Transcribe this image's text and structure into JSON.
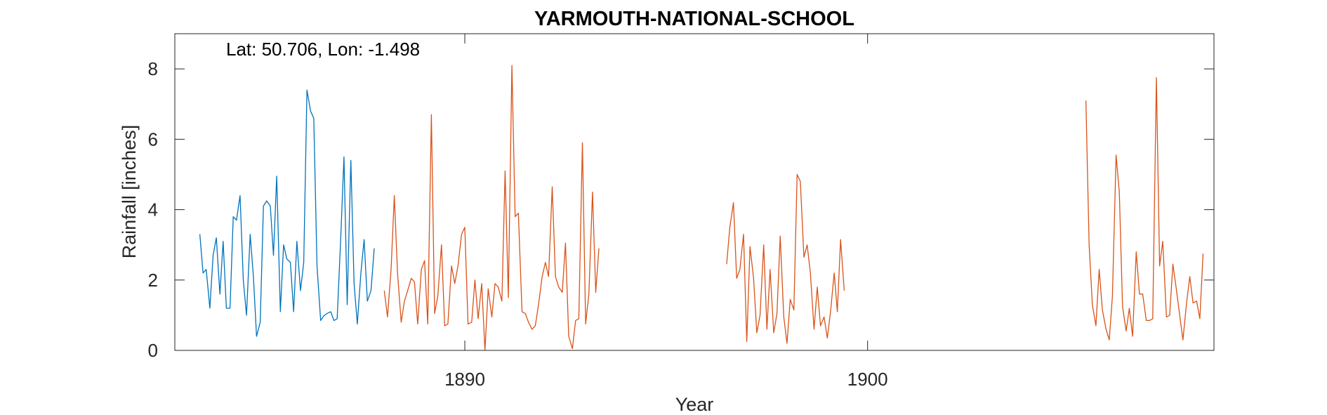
{
  "chart_data": {
    "type": "line",
    "title": "YARMOUTH-NATIONAL-SCHOOL",
    "annotation": "Lat: 50.706, Lon: -1.498",
    "xlabel": "Year",
    "ylabel": "Rainfall [inches]",
    "xlim": [
      1882.8,
      1908.6
    ],
    "ylim": [
      0,
      9
    ],
    "xticks": [
      1890,
      1900
    ],
    "yticks": [
      0,
      2,
      4,
      6,
      8
    ],
    "grid": false,
    "colors": {
      "series_1": "#0072BD",
      "series_2": "#D95319",
      "axis": "#262626"
    },
    "series": [
      {
        "x": [
          1883.42,
          1883.5,
          1883.58,
          1883.67,
          1883.75,
          1883.83,
          1883.92,
          1884.0,
          1884.08,
          1884.17,
          1884.25,
          1884.33,
          1884.42,
          1884.5,
          1884.58,
          1884.67,
          1884.75,
          1884.83,
          1884.92,
          1885.0,
          1885.08,
          1885.17,
          1885.25,
          1885.33,
          1885.42,
          1885.5,
          1885.58,
          1885.67,
          1885.75,
          1885.83,
          1885.92,
          1886.0,
          1886.08,
          1886.17,
          1886.25,
          1886.33,
          1886.42,
          1886.5,
          1886.58,
          1886.67,
          1886.75,
          1886.83,
          1886.92,
          1887.0,
          1887.08,
          1887.17,
          1887.25,
          1887.33,
          1887.42,
          1887.5,
          1887.58,
          1887.67,
          1887.75,
          1887.83,
          1887.92
        ],
        "values": [
          3.3,
          2.2,
          2.3,
          1.2,
          2.7,
          3.2,
          1.6,
          3.1,
          1.2,
          1.2,
          3.8,
          3.7,
          4.4,
          2.0,
          1.0,
          3.3,
          2.1,
          0.4,
          0.8,
          4.1,
          4.25,
          4.1,
          2.7,
          4.95,
          1.1,
          3.0,
          2.6,
          2.5,
          1.1,
          3.1,
          1.7,
          2.5,
          7.4,
          6.8,
          6.6,
          2.4,
          0.85,
          0.98,
          1.05,
          1.1,
          0.85,
          0.9,
          3.2,
          5.5,
          1.3,
          5.4,
          1.9,
          0.75,
          2.2,
          3.15,
          1.4,
          1.7,
          2.9,
          null,
          null
        ]
      },
      {
        "x": [
          1888.0,
          1888.08,
          1888.17,
          1888.25,
          1888.33,
          1888.42,
          1888.5,
          1888.58,
          1888.67,
          1888.75,
          1888.83,
          1888.92,
          1889.0,
          1889.08,
          1889.17,
          1889.25,
          1889.33,
          1889.42,
          1889.5,
          1889.58,
          1889.67,
          1889.75,
          1889.83,
          1889.92,
          1890.0,
          1890.08,
          1890.17,
          1890.25,
          1890.33,
          1890.42,
          1890.5,
          1890.58,
          1890.67,
          1890.75,
          1890.83,
          1890.92,
          1891.0,
          1891.08,
          1891.17,
          1891.25,
          1891.33,
          1891.42,
          1891.5,
          1891.58,
          1891.67,
          1891.75,
          1891.83,
          1891.92,
          1892.0,
          1892.08,
          1892.17,
          1892.25,
          1892.33,
          1892.42,
          1892.5,
          1892.58,
          1892.67,
          1892.75,
          1892.83,
          1892.92,
          1893.0,
          1893.08,
          1893.17,
          1893.25,
          1893.33,
          1893.42,
          null,
          1896.5,
          1896.58,
          1896.67,
          1896.75,
          1896.83,
          1896.92,
          1897.0,
          1897.08,
          1897.17,
          1897.25,
          1897.33,
          1897.42,
          1897.5,
          1897.58,
          1897.67,
          1897.75,
          1897.83,
          1897.92,
          1898.0,
          1898.08,
          1898.17,
          1898.25,
          1898.33,
          1898.42,
          1898.5,
          1898.58,
          1898.67,
          1898.75,
          1898.83,
          1898.92,
          1899.0,
          1899.08,
          1899.17,
          1899.25,
          1899.33,
          1899.42,
          null,
          1905.42,
          1905.5,
          1905.58,
          1905.67,
          1905.75,
          1905.83,
          1905.92,
          1906.0,
          1906.08,
          1906.17,
          1906.25,
          1906.33,
          1906.42,
          1906.5,
          1906.58,
          1906.67,
          1906.75,
          1906.83,
          1906.92,
          1907.0,
          1907.08,
          1907.17,
          1907.25,
          1907.33,
          1907.42,
          1907.5,
          1907.58,
          1907.67,
          1907.75,
          1907.83,
          1907.92,
          1908.0,
          1908.08,
          1908.17,
          1908.25,
          1908.33
        ],
        "values": [
          1.7,
          0.95,
          2.3,
          4.4,
          2.2,
          0.8,
          1.4,
          1.7,
          2.05,
          1.95,
          0.75,
          2.3,
          2.55,
          0.75,
          6.7,
          1.05,
          1.55,
          3.0,
          0.7,
          0.75,
          2.4,
          1.9,
          2.4,
          3.3,
          3.5,
          0.75,
          0.8,
          2.0,
          0.9,
          1.9,
          0.0,
          1.75,
          0.95,
          1.9,
          1.8,
          1.4,
          5.1,
          1.5,
          8.1,
          3.8,
          3.9,
          1.1,
          1.05,
          0.8,
          0.6,
          0.7,
          1.3,
          2.1,
          2.5,
          2.1,
          4.65,
          2.1,
          1.8,
          1.65,
          3.05,
          0.4,
          0.05,
          0.85,
          0.9,
          5.9,
          0.75,
          1.6,
          4.5,
          1.65,
          2.9,
          null,
          null,
          2.45,
          3.5,
          4.2,
          2.05,
          2.3,
          3.3,
          0.25,
          2.95,
          2.05,
          0.5,
          1.0,
          3.0,
          0.6,
          2.3,
          0.5,
          1.05,
          3.25,
          0.95,
          0.2,
          1.45,
          1.15,
          5.0,
          4.8,
          2.65,
          3.0,
          2.2,
          0.6,
          1.8,
          0.7,
          0.95,
          0.35,
          1.1,
          2.2,
          1.1,
          3.15,
          1.7,
          null,
          7.1,
          3.0,
          1.3,
          0.7,
          2.3,
          1.15,
          0.6,
          0.3,
          1.55,
          5.55,
          4.5,
          1.25,
          0.55,
          1.2,
          0.4,
          2.8,
          1.6,
          1.6,
          0.85,
          0.85,
          0.9,
          7.75,
          2.4,
          3.1,
          0.95,
          1.0,
          2.45,
          1.7,
          1.0,
          0.3,
          1.35,
          2.1,
          1.35,
          1.4,
          0.9,
          2.75
        ]
      }
    ]
  }
}
